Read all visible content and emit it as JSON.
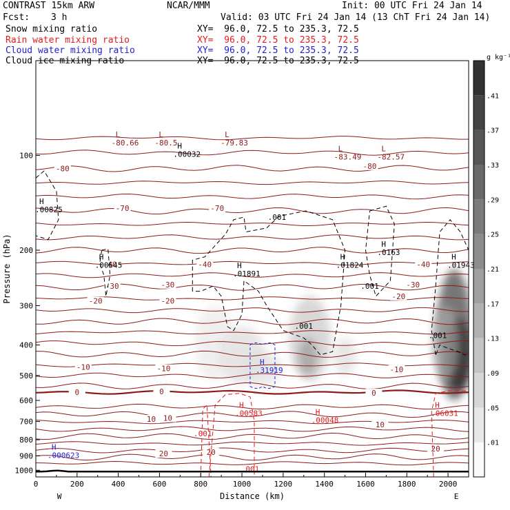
{
  "header": {
    "model": "CONTRAST 15km ARW",
    "center": "NCAR/MMM",
    "init": "Init: 00 UTC Fri 24 Jan 14",
    "fcst": "Fcst:",
    "fcst_hours": "3 h",
    "valid": "Valid: 03 UTC Fri 24 Jan 14 (13 ChT Fri 24 Jan 14)",
    "fields": [
      {
        "name": "Snow mixing ratio",
        "xy": "XY=  96.0, 72.5 to 235.3, 72.5",
        "color": "#000000"
      },
      {
        "name": "Rain water mixing ratio",
        "xy": "XY=  96.0, 72.5 to 235.3, 72.5",
        "color": "#e31a1c"
      },
      {
        "name": "Cloud water mixing ratio",
        "xy": "XY=  96.0, 72.5 to 235.3, 72.5",
        "color": "#1f1fd0"
      },
      {
        "name": "Cloud ice mixing ratio",
        "xy": "XY=  96.0, 72.5 to 235.3, 72.5",
        "color": "#000000"
      }
    ]
  },
  "chart_data": {
    "type": "cross-section",
    "xlabel": "Distance (km)",
    "ylabel": "Pressure (hPa)",
    "xlim": [
      0,
      2100
    ],
    "ylim": [
      1050,
      50
    ],
    "y_scale": "log",
    "x_ticks": [
      "0",
      "200",
      "400",
      "600",
      "800",
      "1000",
      "1200",
      "1400",
      "1600",
      "1800",
      "2000"
    ],
    "y_ticks": [
      "100",
      "200",
      "300",
      "400",
      "500",
      "600",
      "700",
      "800",
      "900",
      "1000"
    ],
    "x_endpoints": {
      "left": "W",
      "right": "E"
    },
    "colorbar": {
      "unit": "g kg⁻¹",
      "labels": [
        ".01",
        ".05",
        ".09",
        ".13",
        ".17",
        ".21",
        ".25",
        ".29",
        ".33",
        ".37",
        ".41"
      ]
    },
    "temperature_contours": [
      {
        "value": -80,
        "labels": [
          "-80",
          "-80"
        ]
      },
      {
        "value": -70,
        "labels": [
          "-70",
          "-70"
        ]
      },
      {
        "value": -40,
        "labels": [
          "-40",
          "-40",
          "-40"
        ]
      },
      {
        "value": -30,
        "labels": [
          "-30",
          "-30",
          "-30"
        ]
      },
      {
        "value": -20,
        "labels": [
          "-20",
          "-20",
          "-20"
        ]
      },
      {
        "value": -10,
        "labels": [
          "-10",
          "-10",
          "-10"
        ]
      },
      {
        "value": 0,
        "labels": [
          "0",
          "0",
          "0"
        ]
      },
      {
        "value": 10,
        "labels": [
          "10",
          "10",
          "10"
        ]
      },
      {
        "value": 20,
        "labels": [
          "20",
          "20",
          "20"
        ]
      }
    ],
    "extrema": [
      {
        "kind": "L",
        "value": "-80.66",
        "x": 400,
        "p": 92,
        "color": "#8b1a1a"
      },
      {
        "kind": "L",
        "value": "-80.5",
        "x": 610,
        "p": 92,
        "color": "#8b1a1a"
      },
      {
        "kind": "L",
        "value": "-79.83",
        "x": 930,
        "p": 92,
        "color": "#8b1a1a"
      },
      {
        "kind": "L",
        "value": "-83.49",
        "x": 1480,
        "p": 102,
        "color": "#8b1a1a"
      },
      {
        "kind": "L",
        "value": "-82.57",
        "x": 1690,
        "p": 102,
        "color": "#8b1a1a"
      },
      {
        "kind": "H",
        "value": ".00032",
        "x": 700,
        "p": 100,
        "color": "#000000"
      },
      {
        "kind": "H",
        "value": ".00825",
        "x": 30,
        "p": 150,
        "color": "#000000"
      },
      {
        "kind": "H",
        "value": ".00545",
        "x": 320,
        "p": 225,
        "color": "#000000"
      },
      {
        "kind": "H",
        "value": ".01891",
        "x": 990,
        "p": 240,
        "color": "#000000"
      },
      {
        "kind": "H",
        "value": ".01824",
        "x": 1490,
        "p": 225,
        "color": "#000000"
      },
      {
        "kind": "H",
        "value": ".0163",
        "x": 1690,
        "p": 205,
        "color": "#000000"
      },
      {
        "kind": "H",
        "value": ".01943",
        "x": 2030,
        "p": 225,
        "color": "#000000"
      },
      {
        "kind": "H",
        "value": ".31919",
        "x": 1100,
        "p": 485,
        "color": "#1f1fd0"
      },
      {
        "kind": "H",
        "value": ".00583",
        "x": 1000,
        "p": 665,
        "color": "#e31a1c"
      },
      {
        "kind": "H",
        "value": ".00048",
        "x": 1370,
        "p": 700,
        "color": "#e31a1c"
      },
      {
        "kind": "H",
        "value": ".06031",
        "x": 1950,
        "p": 665,
        "color": "#e31a1c"
      },
      {
        "kind": "H",
        "value": ".000623",
        "x": 90,
        "p": 905,
        "color": "#1f1fd0"
      }
    ],
    "field_labels": [
      {
        "text": ".001",
        "x": 1170,
        "p": 160,
        "color": "#000000"
      },
      {
        "text": ".001",
        "x": 1620,
        "p": 265,
        "color": "#000000"
      },
      {
        "text": ".001",
        "x": 1300,
        "p": 355,
        "color": "#000000"
      },
      {
        "text": ".001",
        "x": 1950,
        "p": 380,
        "color": "#000000"
      },
      {
        "text": ".001",
        "x": 810,
        "p": 780,
        "color": "#e31a1c"
      },
      {
        "text": ".001",
        "x": 1040,
        "p": 1010,
        "color": "#e31a1c"
      }
    ]
  }
}
